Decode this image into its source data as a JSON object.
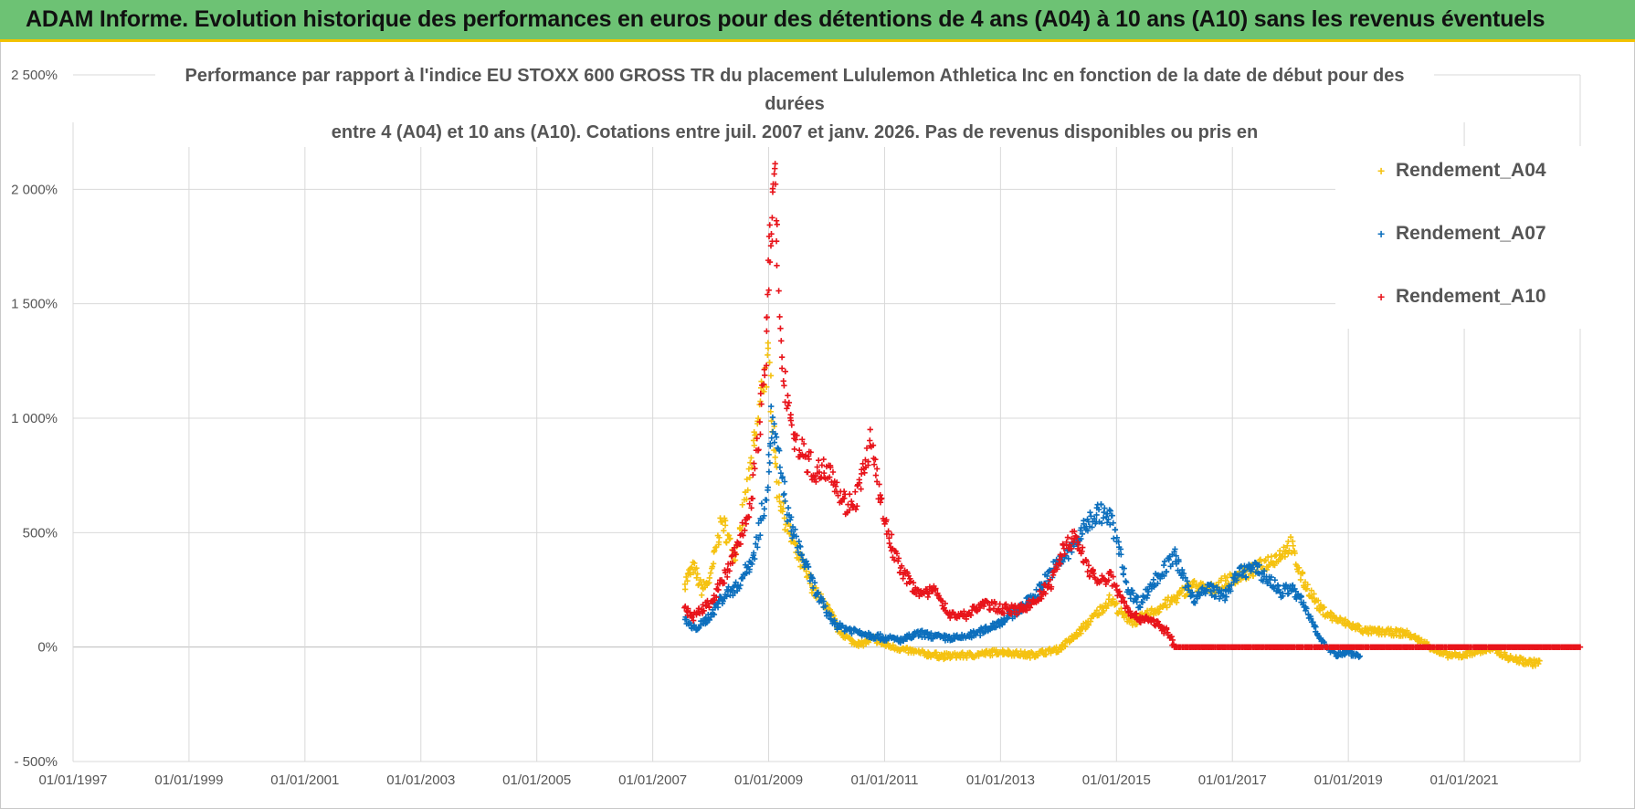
{
  "banner": {
    "title": "ADAM Informe. Evolution historique des performances en euros pour des détentions de 4 ans (A04) à 10 ans (A10) sans les revenus éventuels"
  },
  "colors": {
    "banner_bg": "#6dc274",
    "banner_underline": "#f2c200",
    "a04": "#f5c211",
    "a07": "#0c6fbd",
    "a10": "#e8141b"
  },
  "chart_data": {
    "type": "scatter",
    "title_line1": "Performance par rapport à l'indice EU STOXX 600 GROSS TR  du placement Lululemon Athletica Inc en fonction de la date de début pour des durées",
    "title_line2": "entre 4 (A04) et 10 ans (A10).  Cotations entre juil. 2007 et janv. 2026. Pas de revenus disponibles ou pris en",
    "xlabel": "",
    "ylabel": "",
    "x_unit": "year",
    "xlim": [
      1997.0,
      2023.0
    ],
    "ylim": [
      -500,
      2500
    ],
    "grid": true,
    "legend_position": "top-right",
    "y_ticks": [
      -500,
      0,
      500,
      1000,
      1500,
      2000,
      2500
    ],
    "y_tick_labels": [
      "- 500%",
      "0%",
      "500%",
      "1 000%",
      "1 500%",
      "2 000%",
      "2 500%"
    ],
    "x_ticks": [
      1997,
      1999,
      2001,
      2003,
      2005,
      2007,
      2009,
      2011,
      2013,
      2015,
      2017,
      2019,
      2021
    ],
    "x_tick_labels": [
      "01/01/1997",
      "01/01/1999",
      "01/01/2001",
      "01/01/2003",
      "01/01/2005",
      "01/01/2007",
      "01/01/2009",
      "01/01/2011",
      "01/01/2013",
      "01/01/2015",
      "01/01/2017",
      "01/01/2019",
      "01/01/2021"
    ],
    "series": [
      {
        "name": "Rendement_A04",
        "color": "#f5c211",
        "points": [
          [
            2007.55,
            280
          ],
          [
            2007.7,
            350
          ],
          [
            2007.85,
            250
          ],
          [
            2008.0,
            300
          ],
          [
            2008.1,
            450
          ],
          [
            2008.2,
            550
          ],
          [
            2008.3,
            480
          ],
          [
            2008.4,
            400
          ],
          [
            2008.5,
            500
          ],
          [
            2008.6,
            650
          ],
          [
            2008.7,
            800
          ],
          [
            2008.8,
            950
          ],
          [
            2008.9,
            1150
          ],
          [
            2009.0,
            1250
          ],
          [
            2009.1,
            900
          ],
          [
            2009.15,
            700
          ],
          [
            2009.25,
            600
          ],
          [
            2009.35,
            500
          ],
          [
            2009.5,
            400
          ],
          [
            2009.65,
            320
          ],
          [
            2009.8,
            240
          ],
          [
            2010.0,
            180
          ],
          [
            2010.2,
            80
          ],
          [
            2010.4,
            30
          ],
          [
            2010.6,
            10
          ],
          [
            2010.8,
            40
          ],
          [
            2011.0,
            10
          ],
          [
            2011.3,
            -10
          ],
          [
            2011.6,
            -25
          ],
          [
            2012.0,
            -40
          ],
          [
            2012.5,
            -35
          ],
          [
            2013.0,
            -20
          ],
          [
            2013.5,
            -35
          ],
          [
            2014.0,
            -10
          ],
          [
            2014.3,
            50
          ],
          [
            2014.6,
            130
          ],
          [
            2014.9,
            210
          ],
          [
            2015.1,
            140
          ],
          [
            2015.3,
            110
          ],
          [
            2015.6,
            150
          ],
          [
            2016.0,
            210
          ],
          [
            2016.3,
            270
          ],
          [
            2016.6,
            250
          ],
          [
            2017.0,
            300
          ],
          [
            2017.4,
            340
          ],
          [
            2017.8,
            400
          ],
          [
            2018.0,
            450
          ],
          [
            2018.2,
            300
          ],
          [
            2018.5,
            170
          ],
          [
            2018.8,
            120
          ],
          [
            2019.0,
            100
          ],
          [
            2019.3,
            70
          ],
          [
            2019.7,
            65
          ],
          [
            2020.0,
            60
          ],
          [
            2020.3,
            20
          ],
          [
            2020.6,
            -30
          ],
          [
            2020.9,
            -40
          ],
          [
            2021.2,
            -20
          ],
          [
            2021.5,
            -10
          ],
          [
            2021.8,
            -50
          ],
          [
            2022.0,
            -60
          ],
          [
            2022.2,
            -70
          ],
          [
            2022.3,
            -60
          ]
        ]
      },
      {
        "name": "Rendement_A07",
        "color": "#0c6fbd",
        "points": [
          [
            2007.55,
            120
          ],
          [
            2007.7,
            80
          ],
          [
            2007.85,
            100
          ],
          [
            2008.0,
            140
          ],
          [
            2008.15,
            200
          ],
          [
            2008.3,
            240
          ],
          [
            2008.45,
            260
          ],
          [
            2008.6,
            330
          ],
          [
            2008.75,
            400
          ],
          [
            2008.9,
            600
          ],
          [
            2009.0,
            750
          ],
          [
            2009.05,
            1000
          ],
          [
            2009.15,
            850
          ],
          [
            2009.25,
            700
          ],
          [
            2009.35,
            550
          ],
          [
            2009.5,
            450
          ],
          [
            2009.65,
            350
          ],
          [
            2009.8,
            250
          ],
          [
            2010.0,
            150
          ],
          [
            2010.2,
            90
          ],
          [
            2010.5,
            70
          ],
          [
            2010.8,
            50
          ],
          [
            2011.0,
            40
          ],
          [
            2011.3,
            30
          ],
          [
            2011.6,
            60
          ],
          [
            2012.0,
            40
          ],
          [
            2012.3,
            40
          ],
          [
            2012.6,
            60
          ],
          [
            2013.0,
            110
          ],
          [
            2013.3,
            160
          ],
          [
            2013.6,
            230
          ],
          [
            2013.9,
            340
          ],
          [
            2014.2,
            420
          ],
          [
            2014.5,
            540
          ],
          [
            2014.7,
            590
          ],
          [
            2014.9,
            560
          ],
          [
            2015.0,
            480
          ],
          [
            2015.2,
            250
          ],
          [
            2015.4,
            190
          ],
          [
            2015.6,
            270
          ],
          [
            2015.8,
            330
          ],
          [
            2016.0,
            400
          ],
          [
            2016.15,
            300
          ],
          [
            2016.35,
            210
          ],
          [
            2016.6,
            260
          ],
          [
            2016.85,
            220
          ],
          [
            2017.1,
            320
          ],
          [
            2017.35,
            350
          ],
          [
            2017.6,
            300
          ],
          [
            2017.85,
            240
          ],
          [
            2018.0,
            260
          ],
          [
            2018.2,
            200
          ],
          [
            2018.4,
            100
          ],
          [
            2018.6,
            0
          ],
          [
            2018.8,
            -30
          ],
          [
            2019.0,
            -20
          ],
          [
            2019.2,
            -40
          ]
        ]
      },
      {
        "name": "Rendement_A10",
        "color": "#e8141b",
        "points": [
          [
            2007.55,
            170
          ],
          [
            2007.7,
            130
          ],
          [
            2007.85,
            160
          ],
          [
            2008.0,
            200
          ],
          [
            2008.2,
            280
          ],
          [
            2008.35,
            370
          ],
          [
            2008.5,
            470
          ],
          [
            2008.65,
            580
          ],
          [
            2008.75,
            750
          ],
          [
            2008.85,
            1000
          ],
          [
            2008.95,
            1300
          ],
          [
            2009.0,
            1650
          ],
          [
            2009.05,
            1850
          ],
          [
            2009.1,
            2100
          ],
          [
            2009.15,
            1600
          ],
          [
            2009.25,
            1200
          ],
          [
            2009.35,
            1050
          ],
          [
            2009.45,
            900
          ],
          [
            2009.6,
            850
          ],
          [
            2009.75,
            780
          ],
          [
            2009.9,
            760
          ],
          [
            2010.05,
            800
          ],
          [
            2010.2,
            680
          ],
          [
            2010.35,
            620
          ],
          [
            2010.5,
            650
          ],
          [
            2010.65,
            780
          ],
          [
            2010.75,
            900
          ],
          [
            2010.85,
            750
          ],
          [
            2011.0,
            550
          ],
          [
            2011.15,
            420
          ],
          [
            2011.3,
            330
          ],
          [
            2011.5,
            260
          ],
          [
            2011.7,
            230
          ],
          [
            2011.9,
            250
          ],
          [
            2012.1,
            140
          ],
          [
            2012.4,
            140
          ],
          [
            2012.7,
            190
          ],
          [
            2013.0,
            170
          ],
          [
            2013.3,
            160
          ],
          [
            2013.6,
            200
          ],
          [
            2013.9,
            290
          ],
          [
            2014.1,
            440
          ],
          [
            2014.3,
            480
          ],
          [
            2014.5,
            350
          ],
          [
            2014.7,
            280
          ],
          [
            2014.9,
            310
          ],
          [
            2015.1,
            210
          ],
          [
            2015.3,
            130
          ],
          [
            2015.6,
            120
          ],
          [
            2015.9,
            60
          ],
          [
            2016.0,
            0
          ],
          [
            2017.0,
            0
          ],
          [
            2018.0,
            0
          ],
          [
            2019.0,
            0
          ],
          [
            2020.0,
            0
          ],
          [
            2021.0,
            0
          ],
          [
            2022.0,
            0
          ],
          [
            2023.0,
            0
          ]
        ]
      }
    ]
  }
}
